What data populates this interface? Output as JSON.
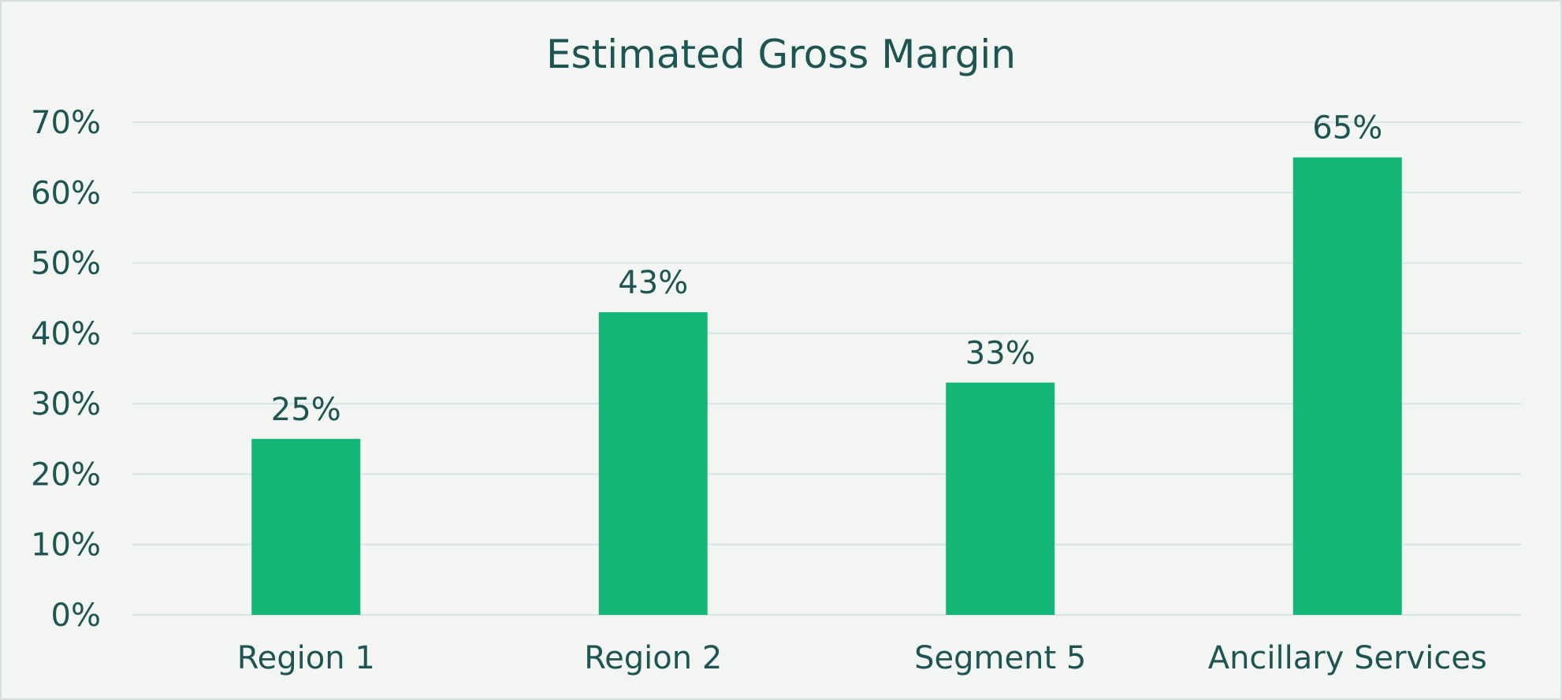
{
  "chart_data": {
    "type": "bar",
    "title": "Estimated Gross Margin",
    "categories": [
      "Region 1",
      "Region 2",
      "Segment 5",
      "Ancillary Services"
    ],
    "values": [
      25,
      43,
      33,
      65
    ],
    "data_labels": [
      "25%",
      "43%",
      "33%",
      "65%"
    ],
    "xlabel": "",
    "ylabel": "",
    "ylim": [
      0,
      70
    ],
    "y_ticks": [
      0,
      10,
      20,
      30,
      40,
      50,
      60,
      70
    ],
    "y_tick_labels": [
      "0%",
      "10%",
      "20%",
      "30%",
      "40%",
      "50%",
      "60%",
      "70%"
    ],
    "grid": true,
    "legend": "none"
  },
  "colors": {
    "bar": "#14b678",
    "grid": "#d4e5e6",
    "text": "#1e5452",
    "background": "#f3f5f2",
    "border": "#d4e0e1"
  }
}
